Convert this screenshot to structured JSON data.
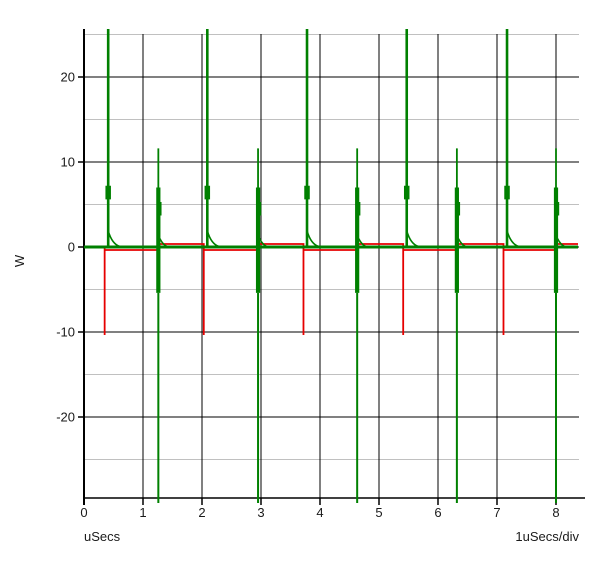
{
  "window": {
    "background_color": "#ffffff"
  },
  "chart_data": {
    "type": "line",
    "title": "",
    "ylabel": "W",
    "xlabel": "uSecs",
    "x_scale_label": "1uSecs/div",
    "grid": "on",
    "legend": "none",
    "xlim": [
      0,
      8.39
    ],
    "ylim": [
      -30.1,
      25.6
    ],
    "x_ticks": [
      0,
      1,
      2,
      3,
      4,
      5,
      6,
      7,
      8
    ],
    "y_ticks": [
      -20,
      -10,
      0,
      10,
      20
    ],
    "y_minor_gridlines": [
      -25,
      -15,
      -5,
      5,
      15,
      25
    ],
    "major_grid_color": "#000000",
    "minor_grid_color": "#c0c0c0",
    "series": [
      {
        "name": "green-power-trace",
        "color": "#008000",
        "baseline_w": 0,
        "tall_spike_times_us": [
          0.41,
          2.09,
          3.78,
          5.47,
          7.17
        ],
        "tall_spike_peak_w": 25.6,
        "tall_spike_clipped_at_top": true,
        "tall_spike_shoulder_w": 6.5,
        "tall_spike_tail_w": 1.9,
        "medium_spike_times_us": [
          1.26,
          2.95,
          4.63,
          6.32,
          8.0
        ],
        "medium_spike_peak_w": 11.6,
        "medium_spike_trough_w": -30.1,
        "medium_spike_clipped_at_bottom": true,
        "medium_spike_thick_from_w": 7.0,
        "medium_spike_thick_to_w": -5.4,
        "medium_spike_nub_w": 5.3,
        "medium_spike_tail_w": 1.0
      },
      {
        "name": "red-power-trace",
        "color": "#e60000",
        "baseline_w": 0,
        "spike_times_us": [
          0.35,
          2.03,
          3.72,
          5.41,
          7.11
        ],
        "spike_trough_w": -10.35,
        "level_after_tall_spike_w": -0.35,
        "level_after_medium_spike_w": 0.35,
        "blip_at_medium_spike_w": -1.4
      }
    ]
  }
}
